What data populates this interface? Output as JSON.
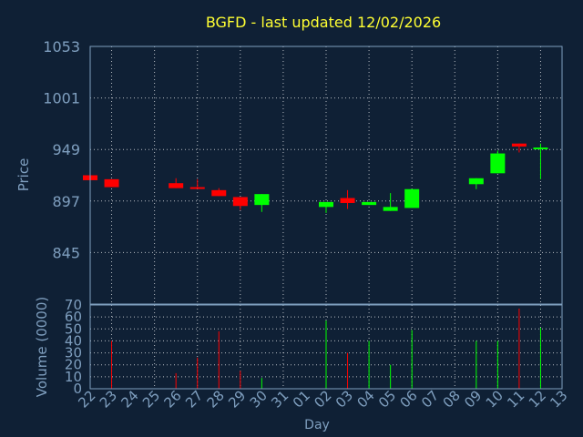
{
  "chart_data": {
    "type": "candlestick",
    "title": "BGFD - last updated 12/02/2026",
    "xlabel": "Day",
    "price_panel": {
      "ylabel": "Price",
      "ylim": [
        793,
        1053
      ],
      "yticks": [
        1053,
        1001,
        949,
        897,
        845
      ]
    },
    "volume_panel": {
      "ylabel": "Volume (0000)",
      "ylim": [
        0,
        70
      ],
      "yticks": [
        0,
        10,
        20,
        30,
        40,
        50,
        60,
        70
      ]
    },
    "x_tick_labels": [
      "22",
      "23",
      "24",
      "25",
      "26",
      "27",
      "28",
      "29",
      "30",
      "31",
      "01",
      "02",
      "03",
      "04",
      "05",
      "06",
      "07",
      "08",
      "09",
      "10",
      "11",
      "12",
      "13"
    ],
    "grid": true,
    "colors": {
      "background": "#0f2035",
      "up": "#00ff00",
      "down": "#ff0000",
      "neutral": "#00ff00",
      "grid": "#ffffff",
      "frame": "#7f9fbf",
      "title": "#ffff33"
    },
    "candles": [
      {
        "idx": 0,
        "open": 923,
        "close": 918,
        "high": 923,
        "low": 918,
        "volume": 0
      },
      {
        "idx": 1,
        "open": 919,
        "close": 911,
        "high": 919,
        "low": 911,
        "volume": 40
      },
      {
        "idx": 4,
        "open": 915,
        "close": 910,
        "high": 920,
        "low": 910,
        "volume": 13
      },
      {
        "idx": 5,
        "open": 911,
        "close": 910,
        "high": 919,
        "low": 910,
        "volume": 26
      },
      {
        "idx": 6,
        "open": 908,
        "close": 902,
        "high": 910,
        "low": 902,
        "volume": 48
      },
      {
        "idx": 7,
        "open": 901,
        "close": 892,
        "high": 901,
        "low": 888,
        "volume": 15
      },
      {
        "idx": 8,
        "open": 893,
        "close": 904,
        "high": 904,
        "low": 886,
        "volume": 9
      },
      {
        "idx": 11,
        "open": 891,
        "close": 896,
        "high": 896,
        "low": 885,
        "volume": 57
      },
      {
        "idx": 12,
        "open": 900,
        "close": 895,
        "high": 908,
        "low": 889,
        "volume": 30
      },
      {
        "idx": 13,
        "open": 893,
        "close": 896,
        "high": 896,
        "low": 893,
        "volume": 40
      },
      {
        "idx": 14,
        "open": 887,
        "close": 891,
        "high": 905,
        "low": 887,
        "volume": 20
      },
      {
        "idx": 15,
        "open": 890,
        "close": 909,
        "high": 909,
        "low": 890,
        "volume": 49
      },
      {
        "idx": 18,
        "open": 914,
        "close": 920,
        "high": 920,
        "low": 909,
        "volume": 40
      },
      {
        "idx": 19,
        "open": 925,
        "close": 945,
        "high": 948,
        "low": 925,
        "volume": 40
      },
      {
        "idx": 20,
        "open": 955,
        "close": 952,
        "high": 955,
        "low": 946,
        "volume": 67
      },
      {
        "idx": 21,
        "open": 951,
        "close": 951,
        "high": 955,
        "low": 919,
        "volume": 51
      }
    ]
  }
}
